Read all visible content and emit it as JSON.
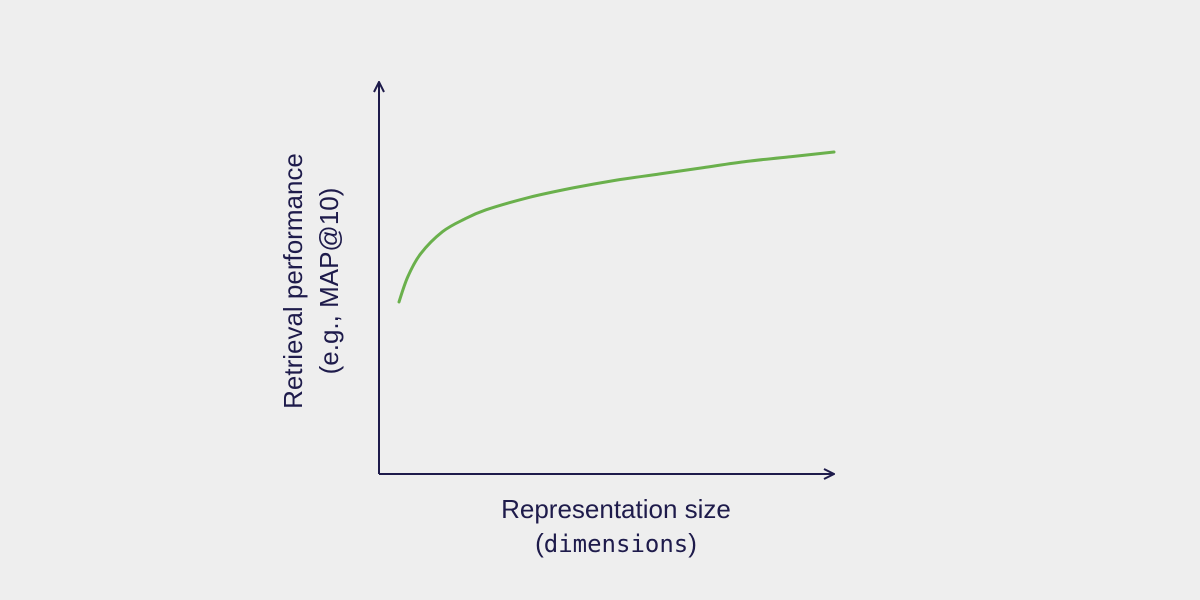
{
  "chart_data": {
    "type": "line",
    "title": "",
    "xlabel_line1": "Representation size",
    "xlabel_line2_prefix": "(",
    "xlabel_line2_code": "dimensions",
    "xlabel_line2_suffix": ")",
    "ylabel_line1": "Retrieval performance",
    "ylabel_line2": "(e.g., MAP@10)",
    "x_ticks": false,
    "y_ticks": false,
    "grid": false,
    "colors": {
      "axis": "#1e1b4b",
      "line": "#6ab04c",
      "background": "#eeeeee"
    },
    "series": [
      {
        "x": [
          0.0,
          0.02,
          0.05,
          0.1,
          0.15,
          0.2,
          0.3,
          0.4,
          0.5,
          0.6,
          0.7,
          0.8,
          0.9,
          1.0
        ],
        "y": [
          0.0,
          0.16,
          0.31,
          0.45,
          0.53,
          0.59,
          0.67,
          0.73,
          0.78,
          0.82,
          0.86,
          0.9,
          0.93,
          0.96
        ]
      }
    ]
  }
}
